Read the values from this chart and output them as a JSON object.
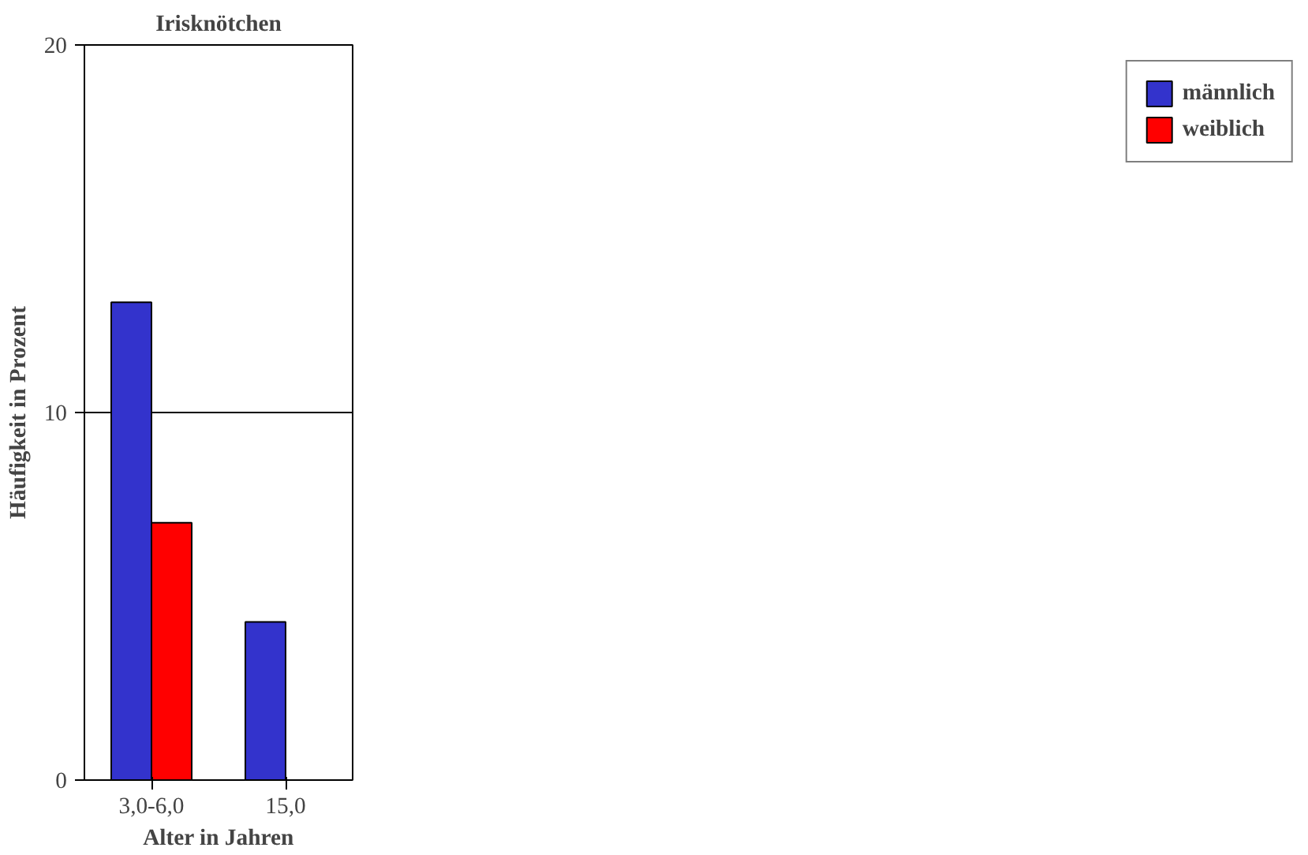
{
  "chart_data": {
    "type": "bar",
    "title": "Irisknötchen",
    "xlabel": "Alter in Jahren",
    "ylabel": "Häufigkeit in Prozent",
    "categories": [
      "3,0-6,0",
      "15,0"
    ],
    "series": [
      {
        "name": "männlich",
        "color": "#3333cc",
        "values": [
          13,
          4.3
        ]
      },
      {
        "name": "weiblich",
        "color": "#ff0000",
        "values": [
          7,
          null
        ]
      }
    ],
    "ylim": [
      0,
      20
    ],
    "yticks": [
      0,
      10,
      20
    ],
    "grid": "y",
    "legend": "right"
  }
}
